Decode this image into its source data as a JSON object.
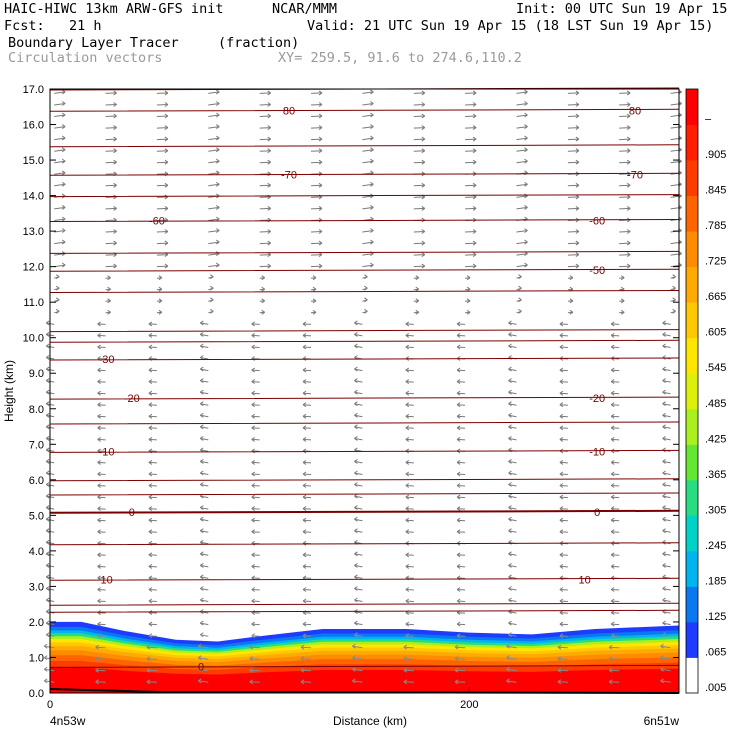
{
  "header": {
    "model": "HAIC-HIWC 13km ARW-GFS init",
    "org": "NCAR/MMM",
    "init": "Init: 00 UTC Sun 19 Apr 15",
    "fcst": "Fcst:   21 h",
    "valid": "Valid: 21 UTC Sun 19 Apr 15 (18 LST Sun 19 Apr 15)",
    "field": "Boundary Layer Tracer",
    "units": "(fraction)",
    "vectors": "Circulation vectors",
    "xy": "XY= 259.5, 91.6 to 274.6,110.2"
  },
  "chart_data": {
    "type": "heatmap",
    "xlabel": "Distance (km)",
    "ylabel": "Height (km)",
    "xlim": [
      0,
      300
    ],
    "ylim": [
      0,
      17
    ],
    "x_ticks": [
      "0",
      "200"
    ],
    "y_ticks": [
      "0.0",
      "1.0",
      "2.0",
      "3.0",
      "4.0",
      "5.0",
      "6.0",
      "7.0",
      "8.0",
      "9.0",
      "10.0",
      "11.0",
      "12.0",
      "13.0",
      "14.0",
      "15.0",
      "16.0",
      "17.0"
    ],
    "x_endpoints": {
      "left": "4n53w",
      "right": "6n51w"
    },
    "tracer_top_km": [
      {
        "x": 0,
        "top": 2.0
      },
      {
        "x": 15,
        "top": 2.0
      },
      {
        "x": 35,
        "top": 1.75
      },
      {
        "x": 60,
        "top": 1.5
      },
      {
        "x": 80,
        "top": 1.45
      },
      {
        "x": 100,
        "top": 1.6
      },
      {
        "x": 130,
        "top": 1.8
      },
      {
        "x": 170,
        "top": 1.8
      },
      {
        "x": 200,
        "top": 1.7
      },
      {
        "x": 230,
        "top": 1.65
      },
      {
        "x": 260,
        "top": 1.8
      },
      {
        "x": 300,
        "top": 1.9
      }
    ],
    "colorbar": {
      "labels": [
        ".005",
        ".065",
        ".125",
        ".185",
        ".245",
        ".305",
        ".365",
        ".425",
        ".485",
        ".545",
        ".605",
        ".665",
        ".725",
        ".785",
        ".845",
        ".905",
        "–"
      ],
      "colors": [
        "#ffffff",
        "#1e3cff",
        "#0a78f0",
        "#00b4f0",
        "#00d2c8",
        "#28dc82",
        "#64e632",
        "#aaf01e",
        "#dcf00a",
        "#ffe600",
        "#ffc800",
        "#ffaa00",
        "#ff8c00",
        "#ff6400",
        "#ff3c00",
        "#ff1e00",
        "#ff0000"
      ]
    },
    "temperature_contours": {
      "color": "#7a0000",
      "levels": [
        {
          "label": "80",
          "y": 16.4,
          "pos": [
            0.38,
            0.93
          ]
        },
        {
          "label": "-70",
          "y": 14.6,
          "pos": [
            0.38,
            0.93
          ]
        },
        {
          "label": "-60",
          "y": 13.3,
          "pos": [
            0.17,
            0.87
          ]
        },
        {
          "label": "-50",
          "y": 11.9,
          "pos": [
            0.87
          ]
        },
        {
          "label": "-30",
          "y": 9.4,
          "pos": [
            0.09
          ]
        },
        {
          "label": "-20",
          "y": 8.3,
          "pos": [
            0.13,
            0.87
          ]
        },
        {
          "label": "-10",
          "y": 6.8,
          "pos": [
            0.09,
            0.87
          ]
        },
        {
          "label": "0",
          "y": 5.1,
          "pos": [
            0.13,
            0.87
          ]
        },
        {
          "label": "10",
          "y": 3.2,
          "pos": [
            0.09,
            0.85
          ]
        },
        {
          "label": "0",
          "y": 0.75,
          "pos": [
            0.24
          ]
        }
      ],
      "unlabeled_y": [
        17.0,
        15.4,
        14.0,
        12.4,
        11.3,
        10.2,
        9.9,
        7.6,
        6.0,
        5.6,
        4.2,
        2.5,
        2.3
      ]
    }
  }
}
